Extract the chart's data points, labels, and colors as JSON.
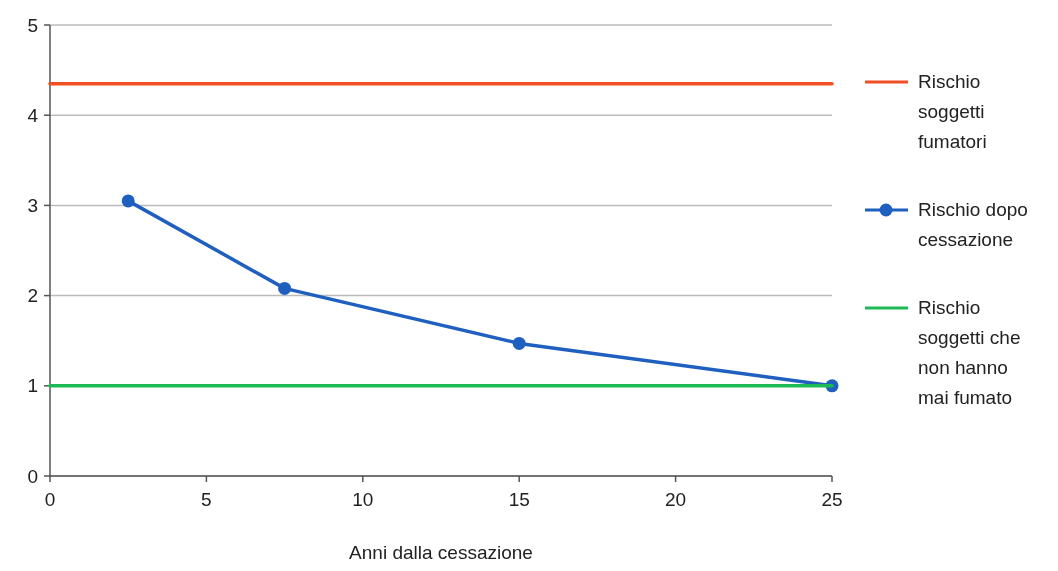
{
  "chart_data": {
    "type": "line",
    "xlabel": "Anni dalla cessazione",
    "xlim": [
      0,
      25
    ],
    "xticks": [
      0,
      5,
      10,
      15,
      20,
      25
    ],
    "ylim": [
      0,
      5
    ],
    "yticks": [
      0,
      1,
      2,
      3,
      4,
      5
    ],
    "grid": "y",
    "legend": "right",
    "series": [
      {
        "name": "Rischio soggetti fumatori",
        "color": "#f04e23",
        "x": [
          0,
          25
        ],
        "values": [
          4.35,
          4.35
        ],
        "marker": "none"
      },
      {
        "name": "Rischio dopo cessazione",
        "color": "#1f5fbf",
        "x": [
          2.5,
          7.5,
          15,
          25
        ],
        "values": [
          3.05,
          2.08,
          1.47,
          1.0
        ],
        "marker": "circle"
      },
      {
        "name": "Rischio soggetti che non hanno mai fumato",
        "color": "#1db954",
        "x": [
          0,
          25
        ],
        "values": [
          1,
          1
        ],
        "marker": "none"
      }
    ]
  }
}
